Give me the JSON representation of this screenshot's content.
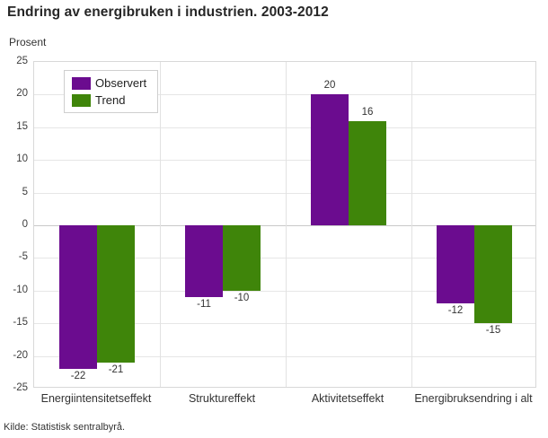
{
  "title": "Endring av energibruken i industrien. 2003-2012",
  "y_axis_title": "Prosent",
  "source": "Kilde: Statistisk sentralbyrå.",
  "legend": {
    "items": [
      {
        "label": "Observert",
        "color": "#6b0c8f"
      },
      {
        "label": "Trend",
        "color": "#3f850a"
      }
    ]
  },
  "chart_data": {
    "type": "bar",
    "title": "Endring av energibruken i industrien. 2003-2012",
    "categories": [
      "Energiintensitetseffekt",
      "Struktureffekt",
      "Aktivitetseffekt",
      "Energibruksendring i alt"
    ],
    "series": [
      {
        "name": "Observert",
        "color": "#6b0c8f",
        "values": [
          -22,
          -11,
          20,
          -12
        ]
      },
      {
        "name": "Trend",
        "color": "#3f850a",
        "values": [
          -21,
          -10,
          16,
          -15
        ]
      }
    ],
    "xlabel": "",
    "ylabel": "Prosent",
    "ylim": [
      -25,
      25
    ],
    "yticks": [
      25,
      20,
      15,
      10,
      5,
      0,
      -5,
      -10,
      -15,
      -20,
      -25
    ],
    "grid": true,
    "legend_position": "top-left",
    "value_labels_shown": true
  }
}
